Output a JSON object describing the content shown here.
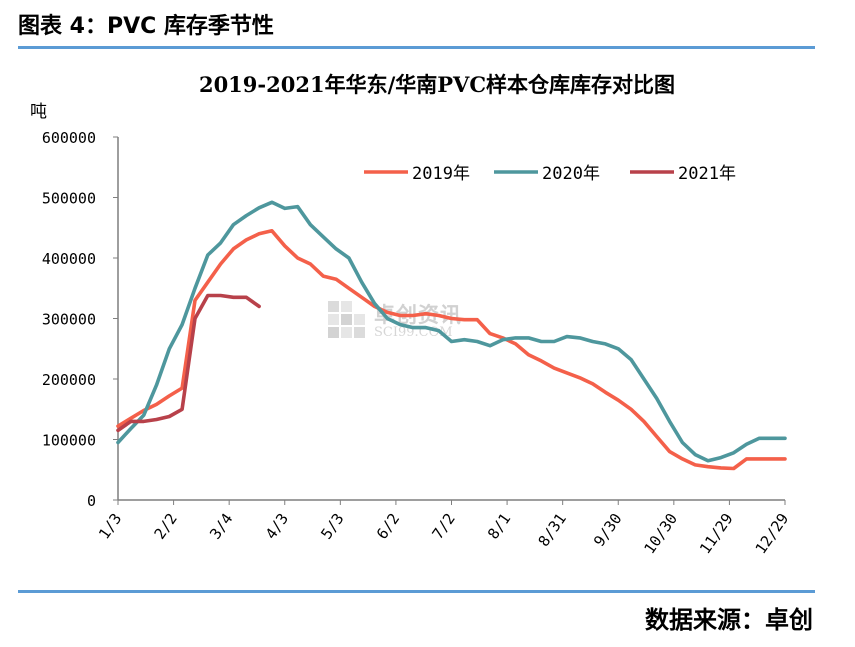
{
  "figure_title": "图表 4：PVC 库存季节性",
  "source": "数据来源：卓创",
  "watermark": {
    "cn": "卓创资讯",
    "en": "SCI99.COM"
  },
  "colors": {
    "rule": "#5b9bd5",
    "s2019": "#f4604a",
    "s2020": "#4e979d",
    "s2021": "#b8414a",
    "axis": "#7f7f7f",
    "text": "#000000"
  },
  "chart_data": {
    "type": "line",
    "title": "2019-2021年华东/华南PVC样本仓库库存对比图",
    "ylabel": "吨",
    "ylim": [
      0,
      600000
    ],
    "yticks": [
      "600000",
      "500000",
      "400000",
      "300000",
      "200000",
      "100000",
      "0"
    ],
    "xticks": [
      "1/3",
      "2/2",
      "3/4",
      "4/3",
      "5/3",
      "6/2",
      "7/2",
      "8/1",
      "8/31",
      "9/30",
      "10/30",
      "11/29",
      "12/29"
    ],
    "x_weeks": 52,
    "legend_position": "top-right",
    "series": [
      {
        "name": "2019年",
        "values": [
          122000,
          135000,
          148000,
          158000,
          172000,
          185000,
          330000,
          360000,
          390000,
          415000,
          430000,
          440000,
          445000,
          420000,
          400000,
          390000,
          370000,
          365000,
          350000,
          335000,
          320000,
          310000,
          305000,
          305000,
          308000,
          305000,
          300000,
          298000,
          298000,
          275000,
          268000,
          258000,
          240000,
          230000,
          218000,
          210000,
          202000,
          192000,
          178000,
          165000,
          150000,
          130000,
          105000,
          80000,
          68000,
          58000,
          55000,
          53000,
          52000,
          68000,
          68000,
          68000,
          68000
        ]
      },
      {
        "name": "2020年",
        "values": [
          95000,
          118000,
          140000,
          190000,
          250000,
          290000,
          350000,
          405000,
          425000,
          455000,
          470000,
          483000,
          492000,
          482000,
          485000,
          455000,
          435000,
          415000,
          400000,
          360000,
          325000,
          300000,
          290000,
          285000,
          285000,
          280000,
          262000,
          265000,
          262000,
          255000,
          265000,
          268000,
          268000,
          262000,
          262000,
          270000,
          268000,
          262000,
          258000,
          250000,
          232000,
          200000,
          168000,
          130000,
          95000,
          75000,
          65000,
          70000,
          78000,
          92000,
          102000,
          102000,
          102000
        ]
      },
      {
        "name": "2021年",
        "values": [
          115000,
          130000,
          130000,
          133000,
          138000,
          150000,
          300000,
          338000,
          338000,
          335000,
          335000,
          320000
        ]
      }
    ]
  }
}
